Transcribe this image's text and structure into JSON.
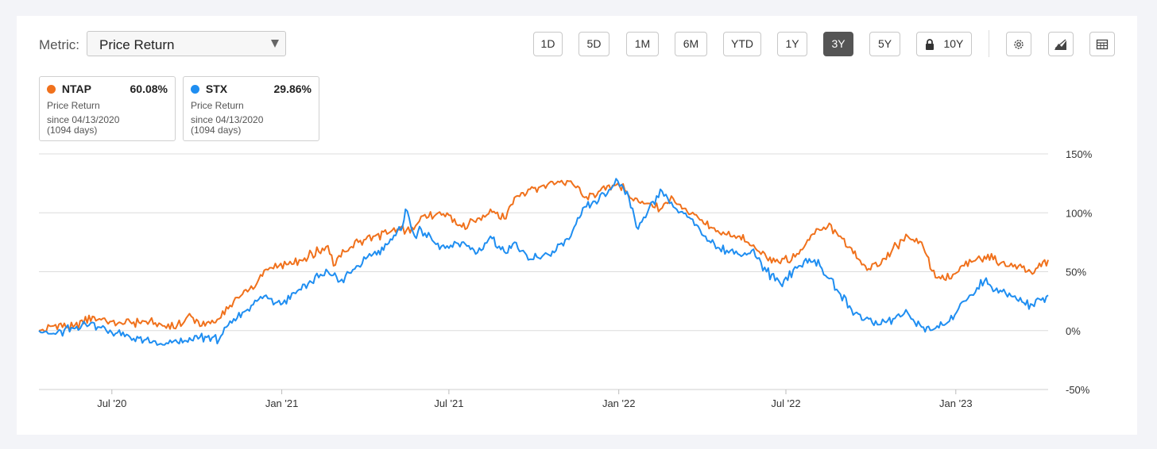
{
  "toolbar": {
    "metric_label": "Metric:",
    "metric_value": "Price Return",
    "ranges": [
      "1D",
      "5D",
      "1M",
      "6M",
      "YTD",
      "1Y",
      "3Y",
      "5Y",
      "10Y"
    ],
    "active_range": "3Y",
    "locked_range": "10Y",
    "icons": [
      "gear-icon",
      "chart-type-icon",
      "table-icon"
    ]
  },
  "legend": [
    {
      "ticker": "NTAP",
      "value": "60.08%",
      "metric": "Price Return",
      "since": "since 04/13/2020",
      "days": "(1094 days)",
      "color": "#f0711c"
    },
    {
      "ticker": "STX",
      "value": "29.86%",
      "metric": "Price Return",
      "since": "since 04/13/2020",
      "days": "(1094 days)",
      "color": "#1f8ef1"
    }
  ],
  "chart_data": {
    "type": "line",
    "x_range": [
      "2020-04-13",
      "2023-04-11"
    ],
    "ylim": [
      -50,
      150
    ],
    "y_ticks": [
      "150%",
      "100%",
      "50%",
      "0%",
      "-50%"
    ],
    "x_ticks": [
      {
        "date": "2020-07-01",
        "label": "Jul '20"
      },
      {
        "date": "2021-01-01",
        "label": "Jan '21"
      },
      {
        "date": "2021-07-01",
        "label": "Jul '21"
      },
      {
        "date": "2022-01-01",
        "label": "Jan '22"
      },
      {
        "date": "2022-07-01",
        "label": "Jul '22"
      },
      {
        "date": "2023-01-01",
        "label": "Jan '23"
      }
    ],
    "series": [
      {
        "name": "NTAP",
        "color": "#f0711c",
        "points": [
          [
            "2020-04-13",
            0
          ],
          [
            "2020-05-01",
            5
          ],
          [
            "2020-05-20",
            3
          ],
          [
            "2020-06-10",
            12
          ],
          [
            "2020-06-25",
            8
          ],
          [
            "2020-07-15",
            6
          ],
          [
            "2020-08-05",
            8
          ],
          [
            "2020-08-25",
            4
          ],
          [
            "2020-09-10",
            5
          ],
          [
            "2020-09-25",
            12
          ],
          [
            "2020-10-10",
            4
          ],
          [
            "2020-10-25",
            10
          ],
          [
            "2020-11-10",
            25
          ],
          [
            "2020-11-25",
            33
          ],
          [
            "2020-12-05",
            40
          ],
          [
            "2020-12-15",
            52
          ],
          [
            "2020-12-31",
            57
          ],
          [
            "2021-01-20",
            60
          ],
          [
            "2021-02-10",
            67
          ],
          [
            "2021-02-20",
            72
          ],
          [
            "2021-02-26",
            55
          ],
          [
            "2021-03-10",
            67
          ],
          [
            "2021-03-25",
            75
          ],
          [
            "2021-04-10",
            80
          ],
          [
            "2021-04-25",
            82
          ],
          [
            "2021-05-10",
            88
          ],
          [
            "2021-05-20",
            83
          ],
          [
            "2021-06-01",
            97
          ],
          [
            "2021-06-15",
            97
          ],
          [
            "2021-07-01",
            98
          ],
          [
            "2021-07-15",
            88
          ],
          [
            "2021-07-30",
            92
          ],
          [
            "2021-08-15",
            103
          ],
          [
            "2021-08-30",
            95
          ],
          [
            "2021-09-10",
            113
          ],
          [
            "2021-09-25",
            120
          ],
          [
            "2021-10-10",
            123
          ],
          [
            "2021-10-25",
            125
          ],
          [
            "2021-11-10",
            127
          ],
          [
            "2021-11-25",
            113
          ],
          [
            "2021-12-10",
            118
          ],
          [
            "2021-12-31",
            125
          ],
          [
            "2022-01-15",
            112
          ],
          [
            "2022-02-01",
            108
          ],
          [
            "2022-02-15",
            103
          ],
          [
            "2022-03-01",
            112
          ],
          [
            "2022-03-20",
            99
          ],
          [
            "2022-04-05",
            90
          ],
          [
            "2022-04-20",
            83
          ],
          [
            "2022-05-10",
            80
          ],
          [
            "2022-05-25",
            72
          ],
          [
            "2022-06-10",
            62
          ],
          [
            "2022-06-25",
            57
          ],
          [
            "2022-07-15",
            65
          ],
          [
            "2022-08-01",
            82
          ],
          [
            "2022-08-15",
            88
          ],
          [
            "2022-08-25",
            83
          ],
          [
            "2022-09-10",
            70
          ],
          [
            "2022-09-25",
            55
          ],
          [
            "2022-10-10",
            55
          ],
          [
            "2022-10-25",
            70
          ],
          [
            "2022-11-10",
            80
          ],
          [
            "2022-11-25",
            75
          ],
          [
            "2022-12-10",
            45
          ],
          [
            "2022-12-25",
            44
          ],
          [
            "2023-01-10",
            55
          ],
          [
            "2023-02-01",
            63
          ],
          [
            "2023-02-20",
            58
          ],
          [
            "2023-03-10",
            55
          ],
          [
            "2023-03-25",
            48
          ],
          [
            "2023-04-11",
            60
          ]
        ]
      },
      {
        "name": "STX",
        "color": "#1f8ef1",
        "points": [
          [
            "2020-04-13",
            0
          ],
          [
            "2020-05-01",
            -3
          ],
          [
            "2020-05-20",
            2
          ],
          [
            "2020-06-10",
            7
          ],
          [
            "2020-06-25",
            0
          ],
          [
            "2020-07-15",
            -5
          ],
          [
            "2020-08-05",
            -8
          ],
          [
            "2020-08-25",
            -12
          ],
          [
            "2020-09-10",
            -10
          ],
          [
            "2020-09-25",
            -8
          ],
          [
            "2020-10-10",
            -5
          ],
          [
            "2020-10-25",
            -8
          ],
          [
            "2020-11-10",
            10
          ],
          [
            "2020-11-25",
            18
          ],
          [
            "2020-12-05",
            25
          ],
          [
            "2020-12-15",
            30
          ],
          [
            "2020-12-31",
            22
          ],
          [
            "2021-01-20",
            35
          ],
          [
            "2021-02-10",
            45
          ],
          [
            "2021-02-20",
            50
          ],
          [
            "2021-03-05",
            42
          ],
          [
            "2021-03-25",
            55
          ],
          [
            "2021-04-10",
            65
          ],
          [
            "2021-04-25",
            73
          ],
          [
            "2021-05-10",
            85
          ],
          [
            "2021-05-15",
            103
          ],
          [
            "2021-05-25",
            80
          ],
          [
            "2021-06-01",
            86
          ],
          [
            "2021-06-15",
            75
          ],
          [
            "2021-07-01",
            70
          ],
          [
            "2021-07-15",
            75
          ],
          [
            "2021-07-30",
            65
          ],
          [
            "2021-08-15",
            80
          ],
          [
            "2021-08-30",
            67
          ],
          [
            "2021-09-10",
            75
          ],
          [
            "2021-09-25",
            60
          ],
          [
            "2021-10-10",
            63
          ],
          [
            "2021-10-25",
            68
          ],
          [
            "2021-11-10",
            80
          ],
          [
            "2021-11-25",
            105
          ],
          [
            "2021-12-10",
            110
          ],
          [
            "2021-12-31",
            127
          ],
          [
            "2022-01-10",
            118
          ],
          [
            "2022-01-20",
            88
          ],
          [
            "2022-02-01",
            100
          ],
          [
            "2022-02-15",
            120
          ],
          [
            "2022-03-01",
            105
          ],
          [
            "2022-03-20",
            95
          ],
          [
            "2022-04-05",
            80
          ],
          [
            "2022-04-20",
            70
          ],
          [
            "2022-05-10",
            65
          ],
          [
            "2022-05-25",
            68
          ],
          [
            "2022-06-10",
            50
          ],
          [
            "2022-06-25",
            40
          ],
          [
            "2022-07-15",
            55
          ],
          [
            "2022-08-01",
            60
          ],
          [
            "2022-08-15",
            45
          ],
          [
            "2022-08-25",
            35
          ],
          [
            "2022-09-10",
            18
          ],
          [
            "2022-09-25",
            10
          ],
          [
            "2022-10-10",
            5
          ],
          [
            "2022-10-25",
            10
          ],
          [
            "2022-11-10",
            15
          ],
          [
            "2022-11-25",
            3
          ],
          [
            "2022-12-10",
            2
          ],
          [
            "2022-12-25",
            8
          ],
          [
            "2023-01-10",
            25
          ],
          [
            "2023-02-01",
            42
          ],
          [
            "2023-02-20",
            33
          ],
          [
            "2023-03-10",
            25
          ],
          [
            "2023-03-25",
            22
          ],
          [
            "2023-04-11",
            30
          ]
        ]
      }
    ]
  }
}
